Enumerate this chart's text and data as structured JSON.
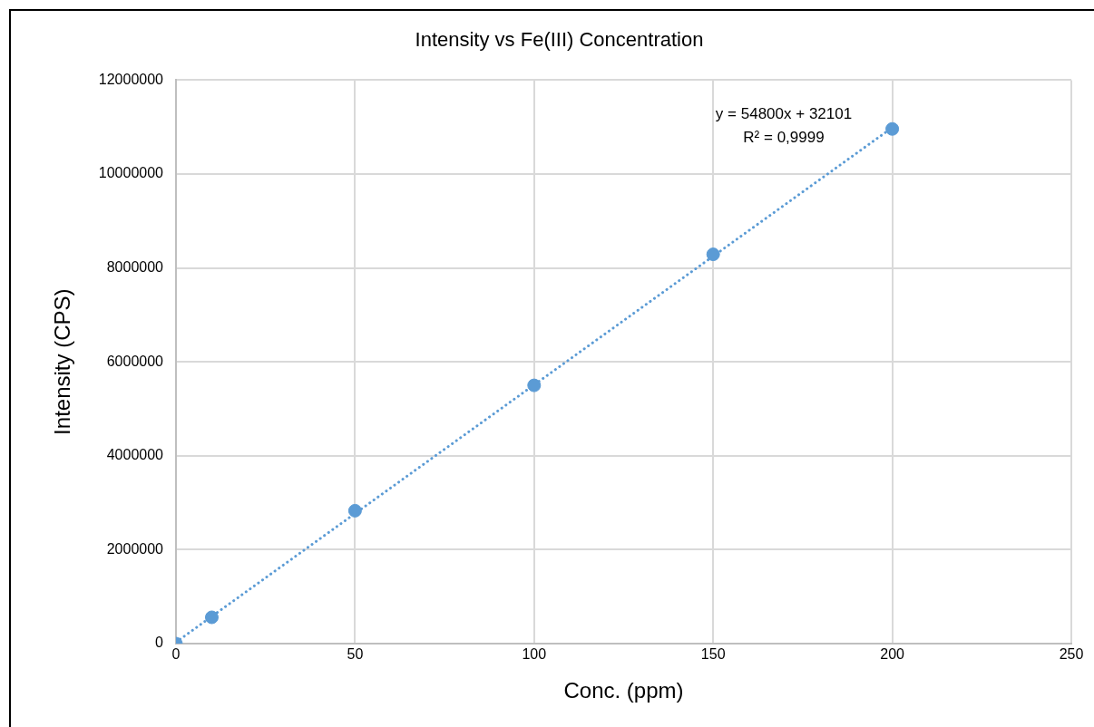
{
  "chart_data": {
    "type": "scatter",
    "title": "Intensity vs Fe(III) Concentration",
    "xlabel": "Conc. (ppm)",
    "ylabel": "Intensity (CPS)",
    "series": [
      {
        "marker": "circle",
        "color": "#5b9bd5",
        "x": [
          0,
          10,
          50,
          100,
          150,
          200
        ],
        "values": [
          0,
          560000,
          2830000,
          5500000,
          8290000,
          10960000
        ]
      },
      {
        "type": "line",
        "color": "#5b9bd5",
        "x": [
          0,
          200
        ],
        "values": [
          30000,
          10990000
        ]
      }
    ],
    "annotations": [
      "y = 54800x + 32101",
      "R² = 0,9999"
    ],
    "xlim": [
      0,
      250
    ],
    "xticks": [
      0,
      50,
      100,
      150,
      200,
      250
    ],
    "ylim": [
      0,
      12000000
    ],
    "yticks": [
      0,
      2000000,
      4000000,
      6000000,
      8000000,
      10000000,
      12000000
    ],
    "grid": true,
    "legend": false,
    "line_style": "dotted"
  }
}
